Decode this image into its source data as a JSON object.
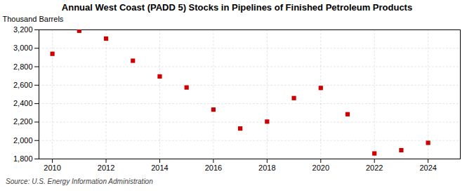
{
  "chart_data": {
    "type": "scatter",
    "title": "Annual West Coast (PADD 5) Stocks in Pipelines of Finished Petroleum Products",
    "ylabel": "Thousand Barrels",
    "source": "Source: U.S. Energy Information Administration",
    "x": [
      2010,
      2011,
      2012,
      2013,
      2014,
      2015,
      2016,
      2017,
      2018,
      2019,
      2020,
      2021,
      2022,
      2023,
      2024
    ],
    "values": [
      2940,
      3190,
      3105,
      2865,
      2695,
      2575,
      2335,
      2130,
      2205,
      2460,
      2570,
      2285,
      1860,
      1895,
      1975
    ],
    "color": "#cc0000",
    "marker": "square",
    "xlim": [
      2009.5,
      2025.2
    ],
    "ylim": [
      1800,
      3200
    ],
    "xticks": [
      2010,
      2012,
      2014,
      2016,
      2018,
      2020,
      2022,
      2024
    ],
    "yticks": [
      {
        "value": 1800,
        "label": "1,800"
      },
      {
        "value": 2000,
        "label": "2,000"
      },
      {
        "value": 2200,
        "label": "2,200"
      },
      {
        "value": 2400,
        "label": "2,400"
      },
      {
        "value": 2600,
        "label": "2,600"
      },
      {
        "value": 2800,
        "label": "2,800"
      },
      {
        "value": 3000,
        "label": "3,000"
      },
      {
        "value": 3200,
        "label": "3,200"
      }
    ],
    "grid": true
  }
}
